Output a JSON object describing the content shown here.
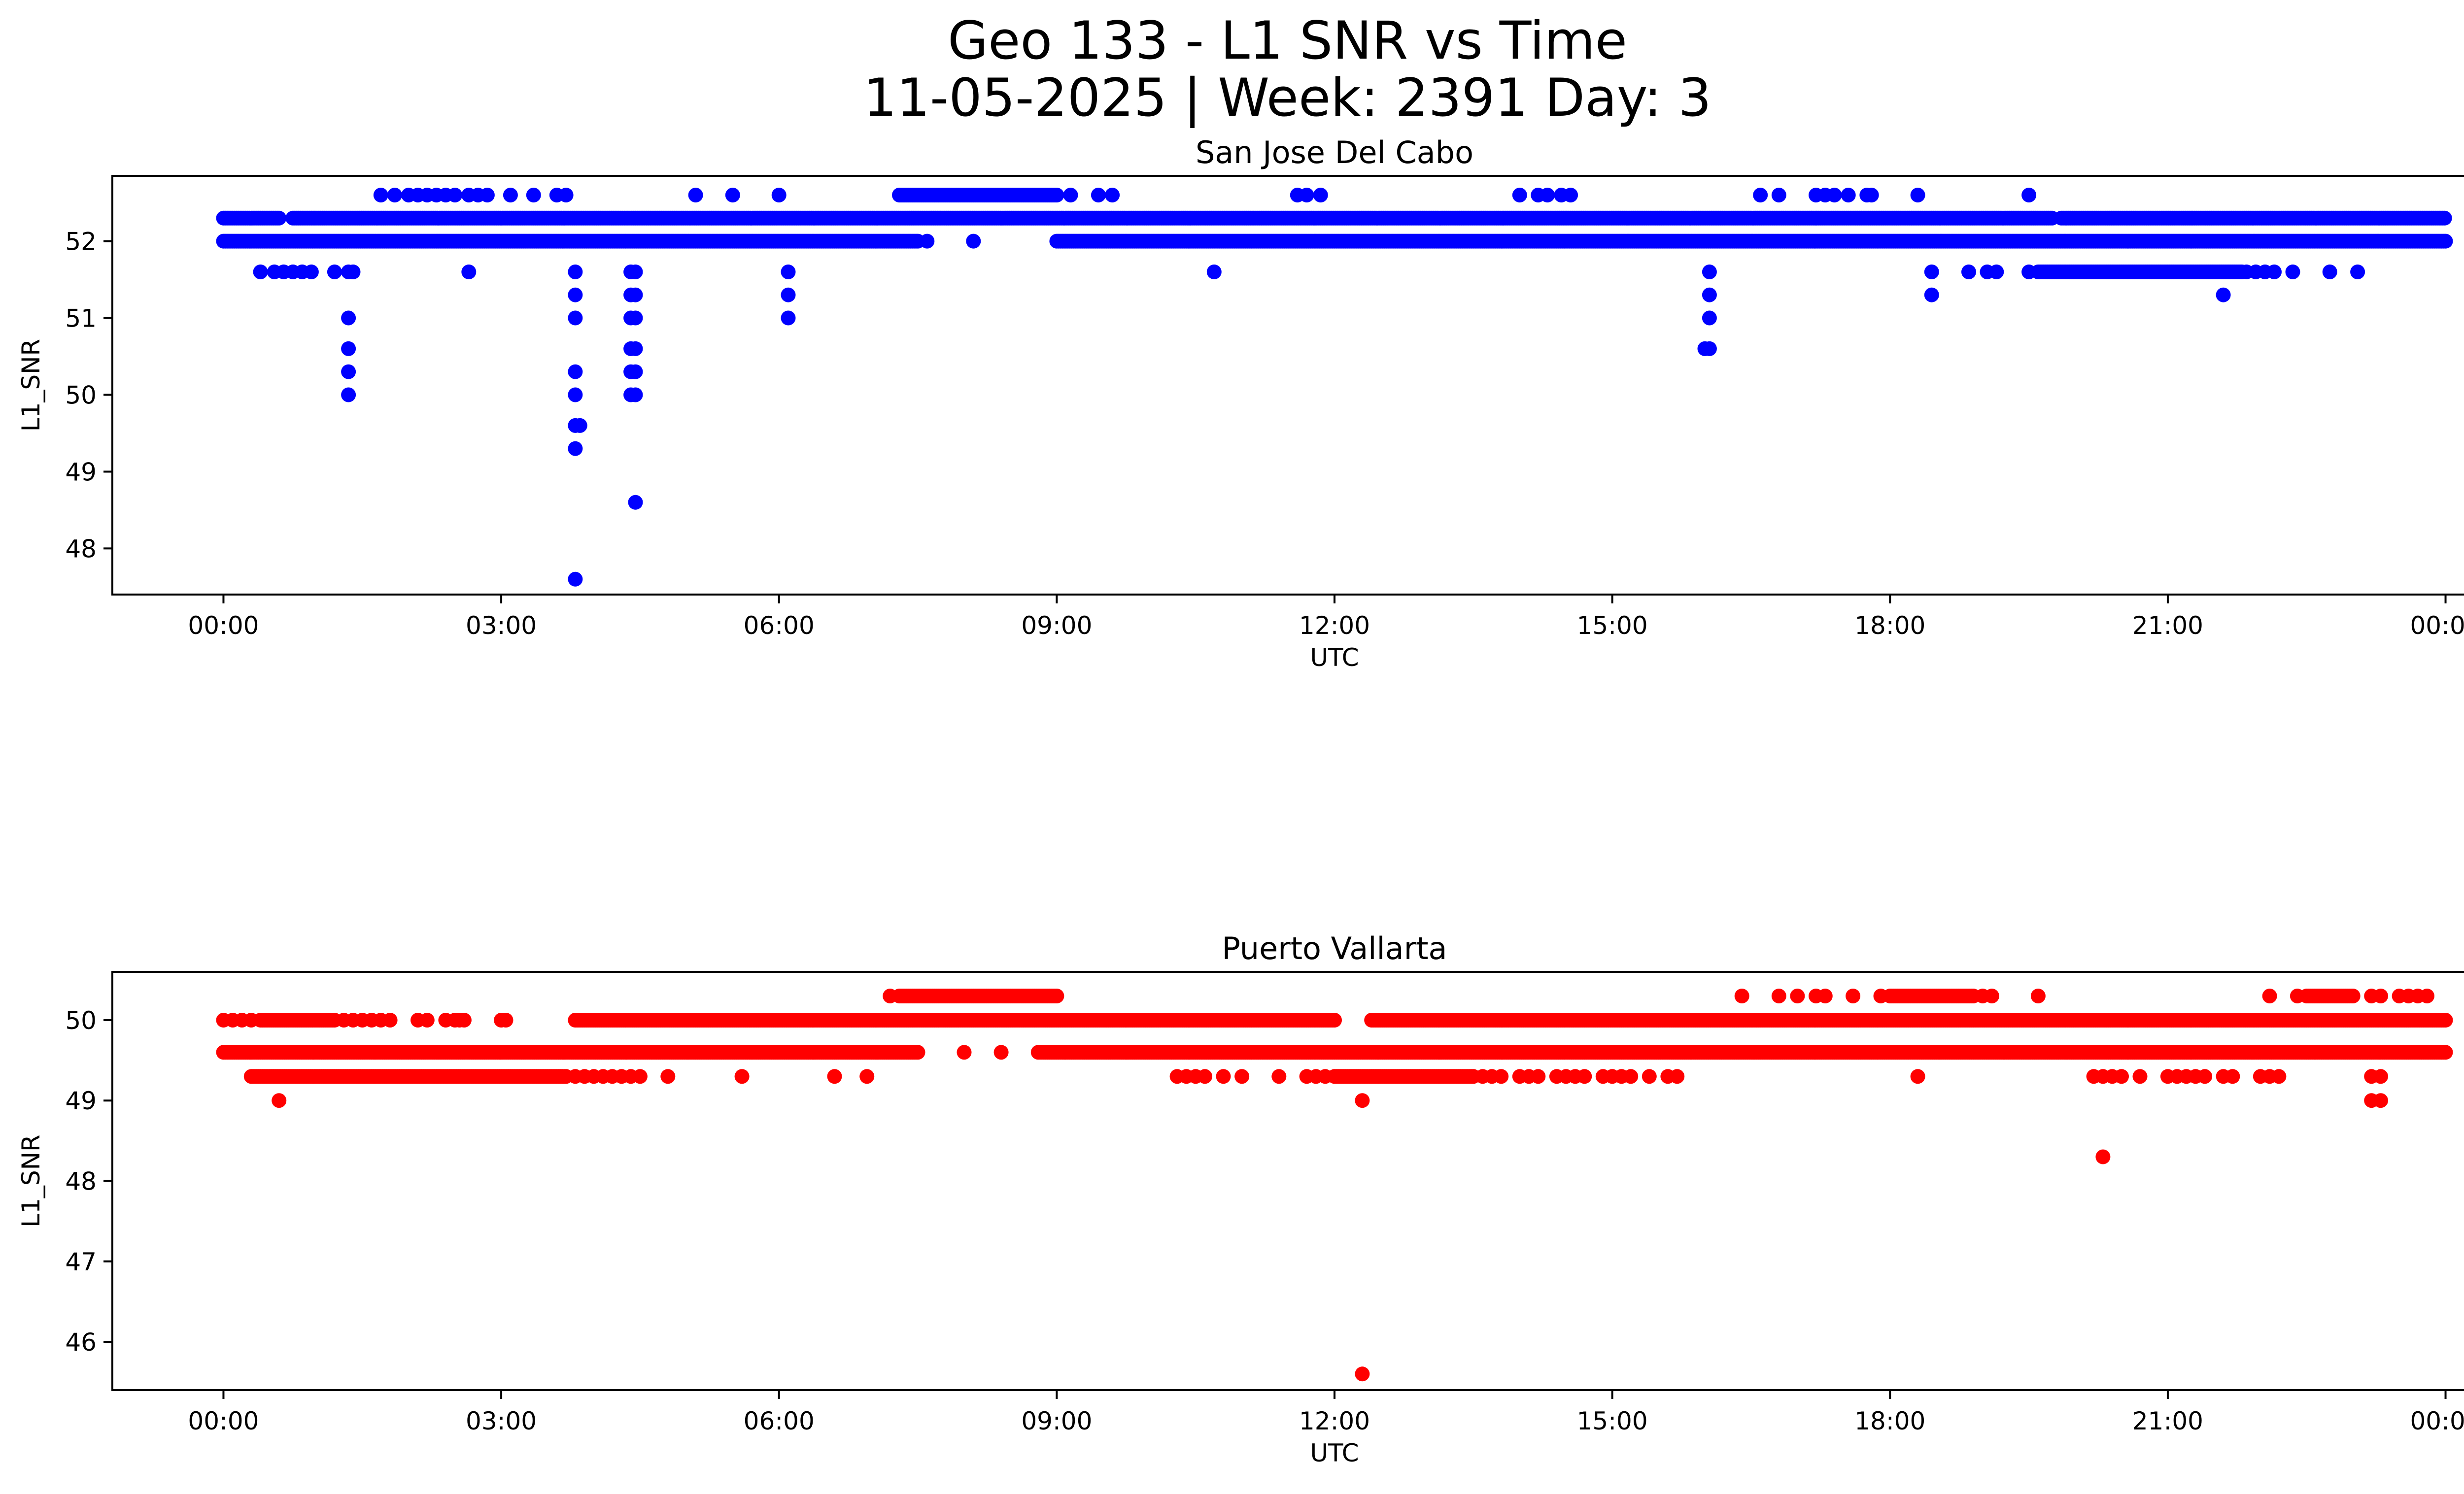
{
  "figure": {
    "title_line1": "Geo 133 - L1 SNR vs Time",
    "title_line2": "11-05-2025 | Week: 2391 Day: 3"
  },
  "chart_data": [
    {
      "type": "scatter",
      "title": "San Jose Del Cabo",
      "xlabel": "UTC",
      "ylabel": "L1_SNR",
      "color": "#0000ff",
      "xlim": [
        -1.2,
        25.2
      ],
      "ylim": [
        47.4,
        52.85
      ],
      "xticks": [
        0,
        3,
        6,
        9,
        12,
        15,
        18,
        21,
        24
      ],
      "xtick_labels": [
        "00:00",
        "03:00",
        "06:00",
        "09:00",
        "12:00",
        "15:00",
        "18:00",
        "21:00",
        "00:00"
      ],
      "yticks": [
        48,
        49,
        50,
        51,
        52
      ],
      "ytick_labels": [
        "48",
        "49",
        "50",
        "51",
        "52"
      ],
      "bands": [
        {
          "y": 52.3,
          "ranges": [
            [
              0.0,
              0.6
            ],
            [
              0.75,
              19.75
            ],
            [
              19.85,
              24.0
            ]
          ]
        },
        {
          "y": 52.0,
          "ranges": [
            [
              0.0,
              7.5
            ],
            [
              9.0,
              24.0
            ]
          ]
        },
        {
          "y": 52.6,
          "ranges": [
            [
              7.3,
              9.0
            ]
          ]
        },
        {
          "y": 51.6,
          "ranges": [
            [
              19.6,
              21.8
            ]
          ]
        }
      ],
      "points": [
        [
          1.7,
          52.6
        ],
        [
          1.85,
          52.6
        ],
        [
          2.0,
          52.6
        ],
        [
          2.1,
          52.6
        ],
        [
          2.2,
          52.6
        ],
        [
          2.3,
          52.6
        ],
        [
          2.4,
          52.6
        ],
        [
          2.5,
          52.6
        ],
        [
          2.65,
          52.6
        ],
        [
          2.75,
          52.6
        ],
        [
          2.85,
          52.6
        ],
        [
          3.1,
          52.6
        ],
        [
          3.35,
          52.6
        ],
        [
          3.6,
          52.6
        ],
        [
          3.7,
          52.6
        ],
        [
          5.1,
          52.6
        ],
        [
          5.5,
          52.6
        ],
        [
          6.0,
          52.6
        ],
        [
          9.15,
          52.6
        ],
        [
          9.45,
          52.6
        ],
        [
          9.6,
          52.6
        ],
        [
          11.6,
          52.6
        ],
        [
          11.7,
          52.6
        ],
        [
          11.85,
          52.6
        ],
        [
          14.0,
          52.6
        ],
        [
          14.2,
          52.6
        ],
        [
          14.3,
          52.6
        ],
        [
          14.45,
          52.6
        ],
        [
          14.55,
          52.6
        ],
        [
          16.6,
          52.6
        ],
        [
          16.8,
          52.6
        ],
        [
          17.2,
          52.6
        ],
        [
          17.3,
          52.6
        ],
        [
          17.4,
          52.6
        ],
        [
          17.55,
          52.6
        ],
        [
          17.75,
          52.6
        ],
        [
          17.8,
          52.6
        ],
        [
          18.3,
          52.6
        ],
        [
          19.5,
          52.6
        ],
        [
          7.6,
          52.0
        ],
        [
          8.1,
          52.0
        ],
        [
          0.4,
          51.6
        ],
        [
          0.55,
          51.6
        ],
        [
          0.65,
          51.6
        ],
        [
          0.75,
          51.6
        ],
        [
          0.85,
          51.6
        ],
        [
          0.95,
          51.6
        ],
        [
          1.2,
          51.6
        ],
        [
          1.35,
          51.6
        ],
        [
          1.4,
          51.6
        ],
        [
          2.65,
          51.6
        ],
        [
          3.8,
          51.6
        ],
        [
          4.4,
          51.6
        ],
        [
          4.45,
          51.6
        ],
        [
          6.1,
          51.6
        ],
        [
          10.7,
          51.6
        ],
        [
          16.05,
          51.6
        ],
        [
          18.45,
          51.6
        ],
        [
          18.85,
          51.6
        ],
        [
          19.05,
          51.6
        ],
        [
          19.15,
          51.6
        ],
        [
          19.5,
          51.6
        ],
        [
          21.85,
          51.6
        ],
        [
          21.95,
          51.6
        ],
        [
          22.05,
          51.6
        ],
        [
          22.15,
          51.6
        ],
        [
          22.35,
          51.6
        ],
        [
          22.75,
          51.6
        ],
        [
          23.05,
          51.6
        ],
        [
          3.8,
          51.3
        ],
        [
          4.4,
          51.3
        ],
        [
          4.45,
          51.3
        ],
        [
          6.1,
          51.3
        ],
        [
          16.05,
          51.3
        ],
        [
          18.45,
          51.3
        ],
        [
          21.6,
          51.3
        ],
        [
          1.35,
          51.0
        ],
        [
          3.8,
          51.0
        ],
        [
          4.4,
          51.0
        ],
        [
          4.45,
          51.0
        ],
        [
          6.1,
          51.0
        ],
        [
          16.05,
          51.0
        ],
        [
          1.35,
          50.6
        ],
        [
          4.4,
          50.6
        ],
        [
          4.45,
          50.6
        ],
        [
          16.05,
          50.6
        ],
        [
          16.0,
          50.6
        ],
        [
          1.35,
          50.3
        ],
        [
          3.8,
          50.3
        ],
        [
          4.4,
          50.3
        ],
        [
          4.45,
          50.3
        ],
        [
          1.35,
          50.0
        ],
        [
          3.8,
          50.0
        ],
        [
          4.4,
          50.0
        ],
        [
          4.45,
          50.0
        ],
        [
          3.8,
          49.6
        ],
        [
          3.85,
          49.6
        ],
        [
          3.8,
          49.3
        ],
        [
          4.45,
          48.6
        ],
        [
          3.8,
          47.6
        ]
      ]
    },
    {
      "type": "scatter",
      "title": "Puerto Vallarta",
      "xlabel": "UTC",
      "ylabel": "L1_SNR",
      "color": "#ff0000",
      "xlim": [
        -1.2,
        25.2
      ],
      "ylim": [
        45.4,
        50.6
      ],
      "xticks": [
        0,
        3,
        6,
        9,
        12,
        15,
        18,
        21,
        24
      ],
      "xtick_labels": [
        "00:00",
        "03:00",
        "06:00",
        "09:00",
        "12:00",
        "15:00",
        "18:00",
        "21:00",
        "00:00"
      ],
      "yticks": [
        46,
        47,
        48,
        49,
        50
      ],
      "ytick_labels": [
        "46",
        "47",
        "48",
        "49",
        "50"
      ],
      "bands": [
        {
          "y": 49.6,
          "ranges": [
            [
              0.0,
              7.5
            ],
            [
              8.8,
              24.0
            ]
          ]
        },
        {
          "y": 50.0,
          "ranges": [
            [
              0.4,
              1.2
            ],
            [
              3.8,
              12.0
            ],
            [
              12.4,
              24.0
            ]
          ]
        },
        {
          "y": 49.3,
          "ranges": [
            [
              0.3,
              3.7
            ],
            [
              12.0,
              13.5
            ]
          ]
        },
        {
          "y": 50.3,
          "ranges": [
            [
              7.3,
              9.0
            ],
            [
              18.0,
              18.9
            ],
            [
              22.5,
              23.0
            ]
          ]
        }
      ],
      "points": [
        [
          0.0,
          50.0
        ],
        [
          0.1,
          50.0
        ],
        [
          0.2,
          50.0
        ],
        [
          0.3,
          50.0
        ],
        [
          1.3,
          50.0
        ],
        [
          1.4,
          50.0
        ],
        [
          1.5,
          50.0
        ],
        [
          1.6,
          50.0
        ],
        [
          1.7,
          50.0
        ],
        [
          1.8,
          50.0
        ],
        [
          2.1,
          50.0
        ],
        [
          2.2,
          50.0
        ],
        [
          2.4,
          50.0
        ],
        [
          2.5,
          50.0
        ],
        [
          2.55,
          50.0
        ],
        [
          2.6,
          50.0
        ],
        [
          3.0,
          50.0
        ],
        [
          3.05,
          50.0
        ],
        [
          7.2,
          50.3
        ],
        [
          16.4,
          50.3
        ],
        [
          16.8,
          50.3
        ],
        [
          17.0,
          50.3
        ],
        [
          17.2,
          50.3
        ],
        [
          17.3,
          50.3
        ],
        [
          17.6,
          50.3
        ],
        [
          17.9,
          50.3
        ],
        [
          19.0,
          50.3
        ],
        [
          19.1,
          50.3
        ],
        [
          19.6,
          50.3
        ],
        [
          22.1,
          50.3
        ],
        [
          22.4,
          50.3
        ],
        [
          23.2,
          50.3
        ],
        [
          23.3,
          50.3
        ],
        [
          23.5,
          50.3
        ],
        [
          23.6,
          50.3
        ],
        [
          23.7,
          50.3
        ],
        [
          23.8,
          50.3
        ],
        [
          8.0,
          49.6
        ],
        [
          8.4,
          49.6
        ],
        [
          3.8,
          49.3
        ],
        [
          3.9,
          49.3
        ],
        [
          4.0,
          49.3
        ],
        [
          4.1,
          49.3
        ],
        [
          4.2,
          49.3
        ],
        [
          4.3,
          49.3
        ],
        [
          4.4,
          49.3
        ],
        [
          4.5,
          49.3
        ],
        [
          4.8,
          49.3
        ],
        [
          5.6,
          49.3
        ],
        [
          6.6,
          49.3
        ],
        [
          6.95,
          49.3
        ],
        [
          10.3,
          49.3
        ],
        [
          10.4,
          49.3
        ],
        [
          10.5,
          49.3
        ],
        [
          10.6,
          49.3
        ],
        [
          10.8,
          49.3
        ],
        [
          11.0,
          49.3
        ],
        [
          11.4,
          49.3
        ],
        [
          11.7,
          49.3
        ],
        [
          11.8,
          49.3
        ],
        [
          11.9,
          49.3
        ],
        [
          13.6,
          49.3
        ],
        [
          13.7,
          49.3
        ],
        [
          13.8,
          49.3
        ],
        [
          14.0,
          49.3
        ],
        [
          14.1,
          49.3
        ],
        [
          14.2,
          49.3
        ],
        [
          14.4,
          49.3
        ],
        [
          14.5,
          49.3
        ],
        [
          14.6,
          49.3
        ],
        [
          14.7,
          49.3
        ],
        [
          14.9,
          49.3
        ],
        [
          15.0,
          49.3
        ],
        [
          15.1,
          49.3
        ],
        [
          15.2,
          49.3
        ],
        [
          15.4,
          49.3
        ],
        [
          15.6,
          49.3
        ],
        [
          15.7,
          49.3
        ],
        [
          18.3,
          49.3
        ],
        [
          20.2,
          49.3
        ],
        [
          20.3,
          49.3
        ],
        [
          20.4,
          49.3
        ],
        [
          20.5,
          49.3
        ],
        [
          20.7,
          49.3
        ],
        [
          21.0,
          49.3
        ],
        [
          21.1,
          49.3
        ],
        [
          21.2,
          49.3
        ],
        [
          21.3,
          49.3
        ],
        [
          21.4,
          49.3
        ],
        [
          21.6,
          49.3
        ],
        [
          21.7,
          49.3
        ],
        [
          22.0,
          49.3
        ],
        [
          22.1,
          49.3
        ],
        [
          22.2,
          49.3
        ],
        [
          23.2,
          49.3
        ],
        [
          23.3,
          49.3
        ],
        [
          0.6,
          49.0
        ],
        [
          12.3,
          49.0
        ],
        [
          23.2,
          49.0
        ],
        [
          23.3,
          49.0
        ],
        [
          20.3,
          48.3
        ],
        [
          12.3,
          45.6
        ]
      ]
    }
  ]
}
